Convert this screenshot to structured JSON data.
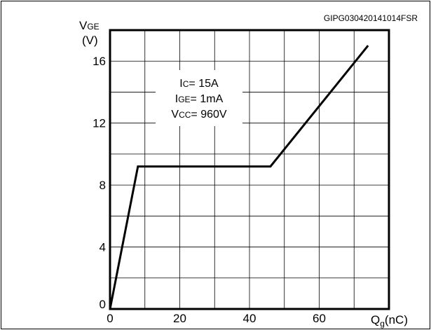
{
  "reference_code": "GIPG030420141014FSR",
  "chart_data": {
    "type": "line",
    "x_axis": {
      "label_main": "Q",
      "label_sub": "g",
      "label_unit": "(nC)",
      "range": [
        0,
        80
      ],
      "ticks": [
        "0",
        "20",
        "40",
        "60"
      ],
      "tick_values": [
        0,
        20,
        40,
        60
      ]
    },
    "y_axis": {
      "label_main": "V",
      "label_sub": "GE",
      "label_unit": "(V)",
      "range": [
        0,
        18
      ],
      "ticks": [
        "0",
        "4",
        "8",
        "12",
        "16"
      ],
      "tick_values": [
        0,
        4,
        8,
        12,
        16
      ]
    },
    "grid": true,
    "grid_x_step": 10,
    "grid_y_step": 2,
    "conditions": [
      {
        "main": "I",
        "sub": "C",
        "value": "= 15A"
      },
      {
        "main": "I",
        "sub": "GE",
        "value": "= 1mA"
      },
      {
        "main": "V",
        "sub": "CC",
        "value": "= 960V"
      }
    ],
    "series": [
      {
        "x": [
          0,
          8,
          46,
          74
        ],
        "y": [
          0,
          9.2,
          9.2,
          17
        ]
      }
    ],
    "line_color": "#000000"
  }
}
